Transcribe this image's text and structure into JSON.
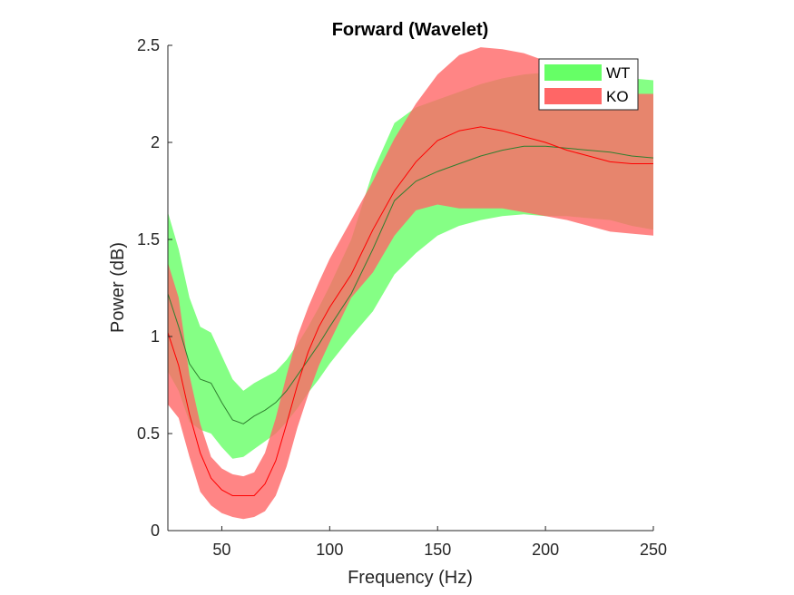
{
  "chart_data": {
    "type": "area",
    "title": "Forward (Wavelet)",
    "xlabel": "Frequency (Hz)",
    "ylabel": "Power (dB)",
    "xlim": [
      25,
      250
    ],
    "ylim": [
      0,
      2.5
    ],
    "xticks": [
      50,
      100,
      150,
      200,
      250
    ],
    "xtick_labels": [
      "50",
      "100",
      "150",
      "200",
      "250"
    ],
    "yticks": [
      0,
      0.5,
      1,
      1.5,
      2,
      2.5
    ],
    "ytick_labels": [
      "0",
      "0.5",
      "1",
      "1.5",
      "2",
      "2.5"
    ],
    "grid": false,
    "legend_position": "top-right",
    "x": [
      25,
      30,
      35,
      40,
      45,
      50,
      55,
      60,
      65,
      70,
      75,
      80,
      85,
      90,
      95,
      100,
      110,
      120,
      130,
      140,
      150,
      160,
      170,
      180,
      190,
      200,
      210,
      220,
      230,
      240,
      250
    ],
    "series": [
      {
        "name": "WT",
        "fill_color": "#66ff66",
        "line_color": "#2f7f2f",
        "mean": [
          1.22,
          1.05,
          0.86,
          0.78,
          0.76,
          0.66,
          0.57,
          0.55,
          0.59,
          0.62,
          0.66,
          0.72,
          0.8,
          0.88,
          0.96,
          1.05,
          1.22,
          1.45,
          1.7,
          1.8,
          1.85,
          1.89,
          1.93,
          1.96,
          1.98,
          1.98,
          1.97,
          1.96,
          1.95,
          1.93,
          1.92
        ],
        "upper": [
          1.64,
          1.45,
          1.2,
          1.05,
          1.02,
          0.9,
          0.78,
          0.72,
          0.76,
          0.79,
          0.82,
          0.88,
          0.96,
          1.05,
          1.15,
          1.26,
          1.5,
          1.85,
          2.1,
          2.18,
          2.22,
          2.26,
          2.3,
          2.33,
          2.35,
          2.36,
          2.36,
          2.35,
          2.34,
          2.33,
          2.32
        ],
        "lower": [
          0.82,
          0.72,
          0.56,
          0.52,
          0.5,
          0.43,
          0.37,
          0.38,
          0.42,
          0.46,
          0.5,
          0.56,
          0.63,
          0.71,
          0.78,
          0.86,
          1.0,
          1.13,
          1.32,
          1.43,
          1.52,
          1.57,
          1.6,
          1.62,
          1.63,
          1.62,
          1.62,
          1.61,
          1.6,
          1.57,
          1.55
        ]
      },
      {
        "name": "KO",
        "fill_color": "#ff6666",
        "line_color": "#ff0000",
        "mean": [
          1.02,
          0.85,
          0.6,
          0.4,
          0.27,
          0.21,
          0.18,
          0.18,
          0.18,
          0.24,
          0.36,
          0.55,
          0.75,
          0.92,
          1.05,
          1.15,
          1.32,
          1.55,
          1.75,
          1.9,
          2.01,
          2.06,
          2.08,
          2.06,
          2.03,
          2.0,
          1.96,
          1.93,
          1.9,
          1.89,
          1.89
        ],
        "upper": [
          1.38,
          1.2,
          0.8,
          0.55,
          0.38,
          0.32,
          0.29,
          0.28,
          0.3,
          0.4,
          0.58,
          0.8,
          1.0,
          1.15,
          1.28,
          1.4,
          1.6,
          1.8,
          2.02,
          2.2,
          2.35,
          2.45,
          2.49,
          2.48,
          2.46,
          2.42,
          2.4,
          2.35,
          2.28,
          2.25,
          2.25
        ],
        "lower": [
          0.65,
          0.58,
          0.38,
          0.2,
          0.13,
          0.09,
          0.07,
          0.06,
          0.07,
          0.1,
          0.18,
          0.33,
          0.53,
          0.7,
          0.85,
          0.97,
          1.2,
          1.33,
          1.52,
          1.65,
          1.68,
          1.66,
          1.66,
          1.66,
          1.64,
          1.62,
          1.6,
          1.57,
          1.54,
          1.53,
          1.52
        ]
      }
    ]
  }
}
